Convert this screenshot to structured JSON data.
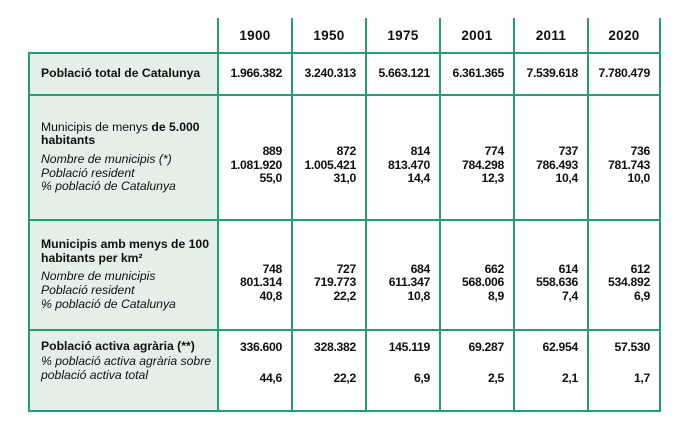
{
  "colors": {
    "border": "#219e75",
    "label_bg": "#e4efe8",
    "text": "#101010"
  },
  "header": {
    "years": [
      "1900",
      "1950",
      "1975",
      "2001",
      "2011",
      "2020"
    ]
  },
  "rows": {
    "total": {
      "label": "Població total de Catalunya",
      "values": [
        "1.966.382",
        "3.240.313",
        "5.663.121",
        "6.361.365",
        "7.539.618",
        "7.780.479"
      ]
    },
    "under5000": {
      "title_regular": "Municipis de menys ",
      "title_bold_l1": "de 5.000",
      "title_bold_l2": "habitants",
      "sub_municipis": "Nombre de municipis (*)",
      "sub_poblacio": "Població resident",
      "sub_percent": "% població de Catalunya",
      "municipis": [
        "889",
        "872",
        "814",
        "774",
        "737",
        "736"
      ],
      "poblacio": [
        "1.081.920",
        "1.005.421",
        "813.470",
        "784.298",
        "786.493",
        "781.743"
      ],
      "percent": [
        "55,0",
        "31,0",
        "14,4",
        "12,3",
        "10,4",
        "10,0"
      ]
    },
    "lowdensity": {
      "title_l1": "Municipis amb menys de 100",
      "title_l2": "habitants per km²",
      "sub_municipis": "Nombre de municipis",
      "sub_poblacio": "Població resident",
      "sub_percent": "% població de Catalunya",
      "municipis": [
        "748",
        "727",
        "684",
        "662",
        "614",
        "612"
      ],
      "poblacio": [
        "801.314",
        "719.773",
        "611.347",
        "568.006",
        "558.636",
        "534.892"
      ],
      "percent": [
        "40,8",
        "22,2",
        "10,8",
        "8,9",
        "7,4",
        "6,9"
      ]
    },
    "agrarian": {
      "title": "Població activa agrària (**)",
      "sub_l1": "% població activa agrària sobre",
      "sub_l2": "població activa total",
      "values": [
        "336.600",
        "328.382",
        "145.119",
        "69.287",
        "62.954",
        "57.530"
      ],
      "percent": [
        "44,6",
        "22,2",
        "6,9",
        "2,5",
        "2,1",
        "1,7"
      ]
    }
  }
}
